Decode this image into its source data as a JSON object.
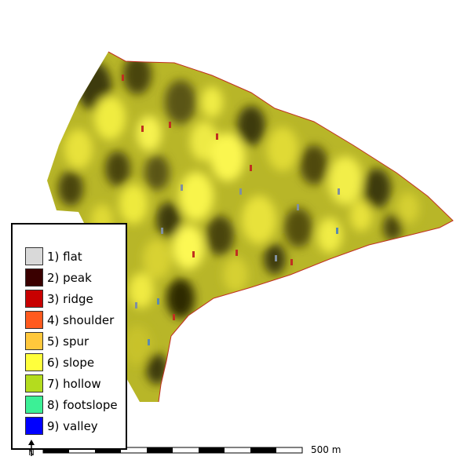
{
  "legend": {
    "items": [
      {
        "label": "1) flat",
        "color": "#d9d9d9"
      },
      {
        "label": "2) peak",
        "color": "#3a0000"
      },
      {
        "label": "3) ridge",
        "color": "#c80000"
      },
      {
        "label": "4) shoulder",
        "color": "#ff5a1e"
      },
      {
        "label": "5) spur",
        "color": "#ffc83c"
      },
      {
        "label": "6) slope",
        "color": "#ffff3c"
      },
      {
        "label": "7) hollow",
        "color": "#b4dc1e"
      },
      {
        "label": "8) footslope",
        "color": "#3cf096"
      },
      {
        "label": "9) valley",
        "color": "#0000ff"
      }
    ]
  },
  "scale_bar": {
    "label": "500 m"
  },
  "north_arrow": {
    "label": "N"
  }
}
